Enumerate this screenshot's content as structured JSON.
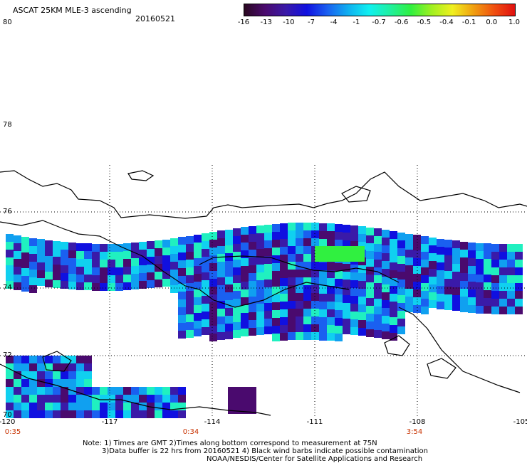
{
  "header": {
    "title": "ASCAT 25KM MLE-3 ascending",
    "date": "20160521"
  },
  "colorbar": {
    "labels": [
      "-16",
      "-13",
      "-10",
      "-7",
      "-4",
      "-1",
      "-0.7",
      "-0.6",
      "-0.5",
      "-0.4",
      "-0.1",
      "0.0",
      "1.0"
    ],
    "colors": [
      "#2a0820",
      "#4a0a6e",
      "#3a1aa8",
      "#1010e0",
      "#1a60f0",
      "#10b0f0",
      "#10f0f0",
      "#20f0a0",
      "#30f040",
      "#a0f020",
      "#f0f020",
      "#f0a010",
      "#f05010",
      "#e01010"
    ]
  },
  "lat_labels": [
    "80",
    "78",
    "76",
    "74",
    "72",
    "70"
  ],
  "lon_labels": [
    "-120",
    "-117",
    "-114",
    "-111",
    "-108",
    "-105"
  ],
  "time_labels": [
    "0:35",
    "0:34",
    "3:54"
  ],
  "notes": [
    "Note: 1) Times are GMT 2)Times along bottom correspond to measurement at 75N",
    "3)Data buffer is 22 hrs from 20160521 4) Black wind barbs indicate possible contamination",
    "NOAA/NESDIS/Center for Satellite Applications and Research"
  ],
  "map_colors": {
    "land_outline": "#000000",
    "grid": "#000000"
  }
}
